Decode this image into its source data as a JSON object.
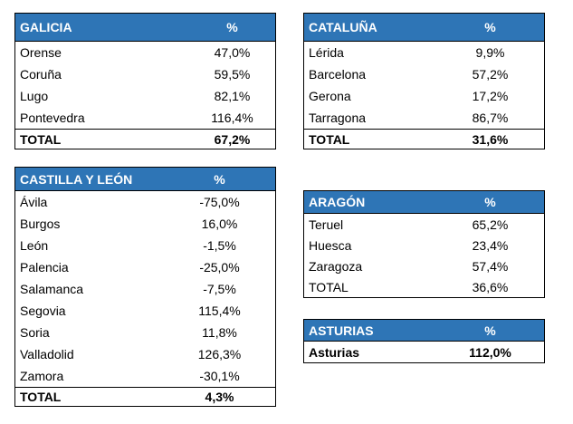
{
  "colors": {
    "header_bg": "#2e75b6",
    "header_text": "#ffffff",
    "border": "#000000"
  },
  "galicia": {
    "header": "GALICIA",
    "pct_header": "%",
    "rows": [
      {
        "name": "Orense",
        "value": "47,0%"
      },
      {
        "name": "Coruña",
        "value": "59,5%"
      },
      {
        "name": "Lugo",
        "value": "82,1%"
      },
      {
        "name": "Pontevedra",
        "value": "116,4%"
      }
    ],
    "total_label": "TOTAL",
    "total_value": "67,2%"
  },
  "cataluna": {
    "header": "CATALUÑA",
    "pct_header": "%",
    "rows": [
      {
        "name": "Lérida",
        "value": "9,9%"
      },
      {
        "name": "Barcelona",
        "value": "57,2%"
      },
      {
        "name": "Gerona",
        "value": "17,2%"
      },
      {
        "name": "Tarragona",
        "value": "86,7%"
      }
    ],
    "total_label": "TOTAL",
    "total_value": "31,6%"
  },
  "castilla_leon": {
    "header": "CASTILLA Y LEÓN",
    "pct_header": "%",
    "rows": [
      {
        "name": "Ávila",
        "value": "-75,0%"
      },
      {
        "name": "Burgos",
        "value": "16,0%"
      },
      {
        "name": "León",
        "value": "-1,5%"
      },
      {
        "name": "Palencia",
        "value": "-25,0%"
      },
      {
        "name": "Salamanca",
        "value": "-7,5%"
      },
      {
        "name": "Segovia",
        "value": "115,4%"
      },
      {
        "name": "Soria",
        "value": "11,8%"
      },
      {
        "name": "Valladolid",
        "value": "126,3%"
      },
      {
        "name": "Zamora",
        "value": "-30,1%"
      }
    ],
    "total_label": "TOTAL",
    "total_value": "4,3%"
  },
  "aragon": {
    "header": "ARAGÓN",
    "pct_header": "%",
    "rows": [
      {
        "name": "Teruel",
        "value": "65,2%"
      },
      {
        "name": "Huesca",
        "value": "23,4%"
      },
      {
        "name": "Zaragoza",
        "value": "57,4%"
      },
      {
        "name": "TOTAL",
        "value": "36,6%"
      }
    ]
  },
  "asturias": {
    "header": "ASTURIAS",
    "pct_header": "%",
    "rows": [
      {
        "name": "Asturias",
        "value": "112,0%"
      }
    ]
  }
}
